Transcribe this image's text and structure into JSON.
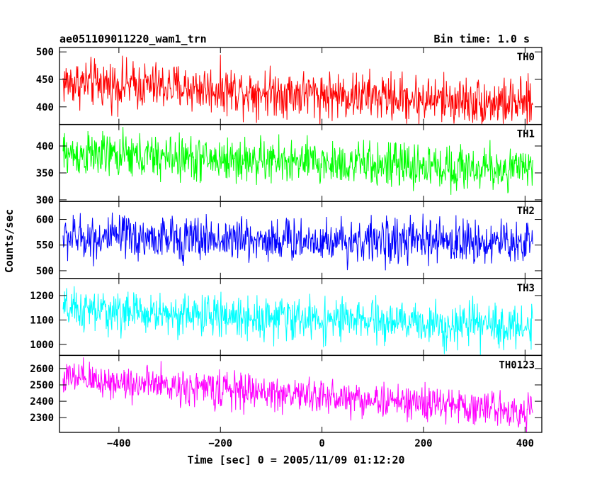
{
  "header": {
    "title": "ae051109011220_wam1_trn",
    "bin_time": "Bin time: 1.0 s"
  },
  "xlabel": "Time [sec] 0 = 2005/11/09 01:12:20",
  "ylabel": "Counts/sec",
  "chart_data": [
    {
      "type": "line",
      "label": "TH0",
      "color": "#ff0000",
      "xlim": [
        -517,
        433
      ],
      "ylim": [
        368,
        508
      ],
      "yticks": [
        400,
        450,
        500
      ],
      "trend": {
        "x_range": [
          -510,
          415
        ],
        "start": 445,
        "end": 405
      },
      "noise_amplitude": 48,
      "x_start": -510,
      "x_end": 415,
      "bin": 1.0
    },
    {
      "type": "line",
      "label": "TH1",
      "color": "#00ff00",
      "xlim": [
        -517,
        433
      ],
      "ylim": [
        297,
        440
      ],
      "yticks": [
        300,
        350,
        400
      ],
      "trend": {
        "x_range": [
          -510,
          415
        ],
        "start": 385,
        "end": 355
      },
      "noise_amplitude": 46,
      "x_start": -510,
      "x_end": 415,
      "bin": 1.0
    },
    {
      "type": "line",
      "label": "TH2",
      "color": "#0000ff",
      "xlim": [
        -517,
        433
      ],
      "ylim": [
        485,
        635
      ],
      "yticks": [
        500,
        550,
        600
      ],
      "trend": {
        "x_range": [
          -510,
          415
        ],
        "start": 565,
        "end": 555
      },
      "noise_amplitude": 48,
      "x_start": -510,
      "x_end": 415,
      "bin": 1.0
    },
    {
      "type": "line",
      "label": "TH3",
      "color": "#00ffff",
      "xlim": [
        -517,
        433
      ],
      "ylim": [
        955,
        1270
      ],
      "yticks": [
        1000,
        1100,
        1200
      ],
      "trend": {
        "x_range": [
          -510,
          415
        ],
        "start": 1140,
        "end": 1070
      },
      "noise_amplitude": 95,
      "x_start": -510,
      "x_end": 415,
      "bin": 1.0
    },
    {
      "type": "line",
      "label": "TH0123",
      "color": "#ff00ff",
      "xlim": [
        -517,
        433
      ],
      "ylim": [
        2210,
        2680
      ],
      "yticks": [
        2300,
        2400,
        2500,
        2600
      ],
      "trend": {
        "x_range": [
          -510,
          415
        ],
        "start": 2540,
        "end": 2340
      },
      "noise_amplitude": 120,
      "x_start": -510,
      "x_end": 415,
      "bin": 1.0
    }
  ],
  "xticks": [
    -400,
    -200,
    0,
    200,
    400
  ]
}
